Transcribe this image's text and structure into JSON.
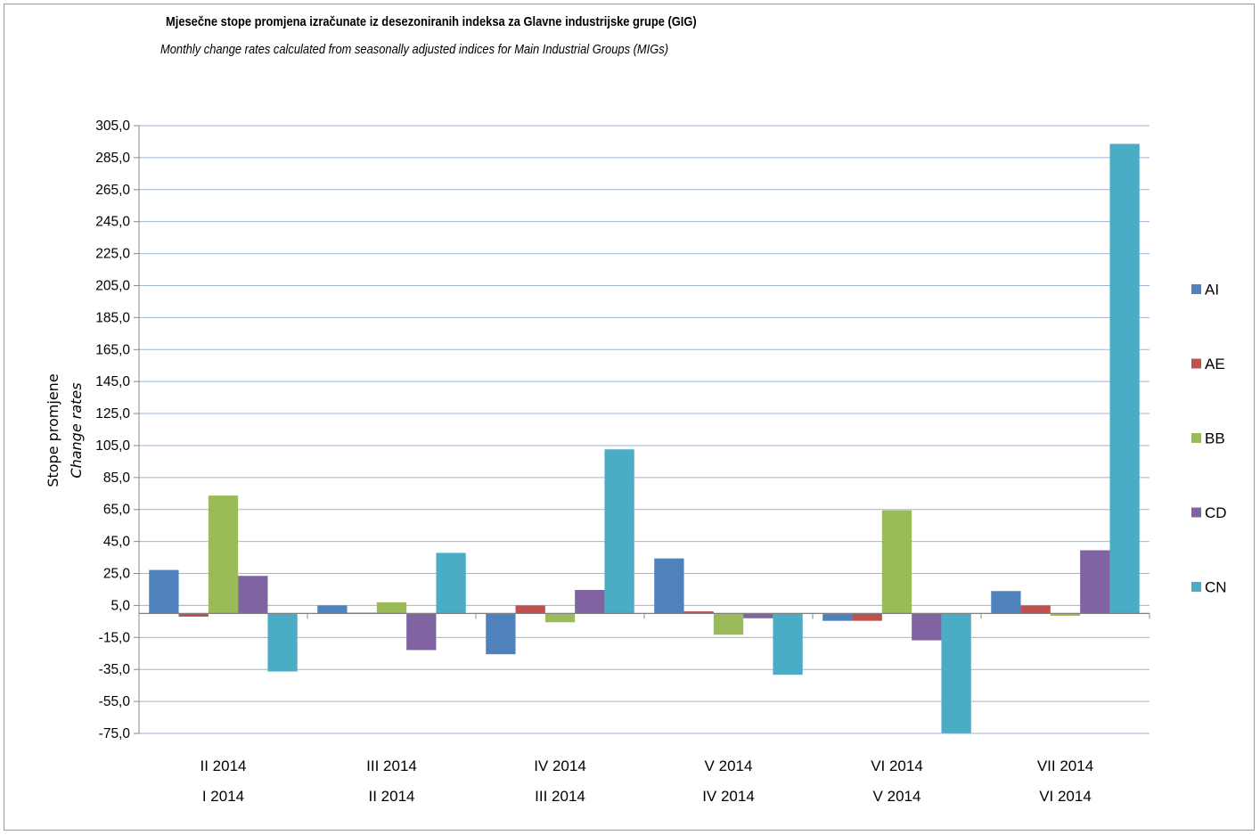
{
  "chart_data": {
    "type": "bar",
    "title": "Mjesečne stope promjena izračunate iz desezoniranih indeksa za Glavne industrijske grupe (GIG)",
    "subtitle": "Monthly change rates calculated from seasonally adjusted indices for Main Industrial Groups (MIGs)",
    "ylabel": "Stope promjene",
    "ylabel_en": "Change rates",
    "xlabel": "",
    "ylim": [
      -75,
      305
    ],
    "y_ticks": [
      "305,0",
      "285,0",
      "265,0",
      "245,0",
      "225,0",
      "205,0",
      "185,0",
      "165,0",
      "145,0",
      "125,0",
      "105,0",
      "85,0",
      "65,0",
      "45,0",
      "25,0",
      "5,0",
      "-15,0",
      "-35,0",
      "-55,0",
      "-75,0"
    ],
    "categories": [
      [
        "II 2014",
        "I 2014"
      ],
      [
        "III 2014",
        "II 2014"
      ],
      [
        "IV 2014",
        "III 2014"
      ],
      [
        "V 2014",
        "IV 2014"
      ],
      [
        "VI 2014",
        "V 2014"
      ],
      [
        "VII 2014",
        "VI 2014"
      ]
    ],
    "series": [
      {
        "name": "AI",
        "color": "#4f81bd",
        "values": [
          27.2,
          5.0,
          -25.5,
          34.4,
          -4.6,
          14.0
        ]
      },
      {
        "name": "AE",
        "color": "#c0504d",
        "values": [
          -2.0,
          0.5,
          5.0,
          1.3,
          -4.6,
          5.0
        ]
      },
      {
        "name": "BB",
        "color": "#9bbb59",
        "values": [
          73.7,
          7.0,
          -5.5,
          -13.3,
          64.5,
          -1.5
        ]
      },
      {
        "name": "CD",
        "color": "#8064a2",
        "values": [
          23.5,
          -22.9,
          14.7,
          -3.0,
          -16.8,
          39.5
        ]
      },
      {
        "name": "CN",
        "color": "#4bacc6",
        "values": [
          -36.3,
          37.9,
          102.6,
          -38.3,
          -74.8,
          293.6
        ]
      }
    ],
    "legend_position": "right",
    "grid": true
  }
}
